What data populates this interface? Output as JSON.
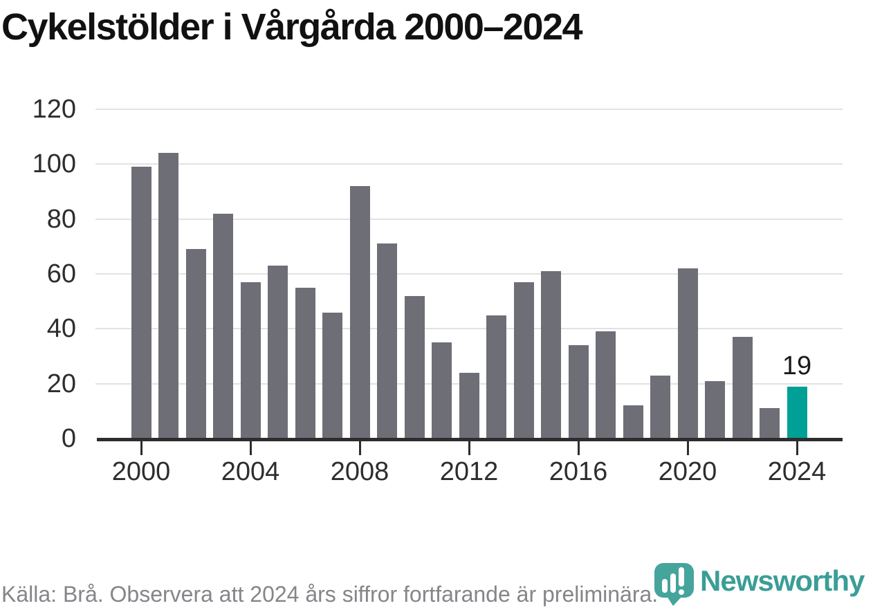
{
  "chart_data": {
    "type": "bar",
    "title": "Cykelstölder i Vårgårda 2000–2024",
    "categories": [
      2000,
      2001,
      2002,
      2003,
      2004,
      2005,
      2006,
      2007,
      2008,
      2009,
      2010,
      2011,
      2012,
      2013,
      2014,
      2015,
      2016,
      2017,
      2018,
      2019,
      2020,
      2021,
      2022,
      2023,
      2024
    ],
    "values": [
      99,
      104,
      69,
      82,
      57,
      63,
      55,
      46,
      92,
      71,
      52,
      35,
      24,
      45,
      57,
      61,
      34,
      39,
      12,
      23,
      62,
      21,
      37,
      11,
      19
    ],
    "ylim": [
      0,
      120
    ],
    "yticks": [
      0,
      20,
      40,
      60,
      80,
      100,
      120
    ],
    "xticks": [
      2000,
      2004,
      2008,
      2012,
      2016,
      2020,
      2024
    ],
    "grid": "horizontal",
    "legend": "none",
    "bar_color": "#6e6e76",
    "highlight_category": 2024,
    "highlight_color": "#00a096",
    "highlight_label": "19",
    "axis_color": "#2d2d2d",
    "gridline_color": "#e2e2e2"
  },
  "footer": {
    "source": "Källa: Brå. Observera att 2024 års siffror fortfarande är preliminära.",
    "brand": "Newsworthy",
    "brand_color": "#3a9e96"
  }
}
